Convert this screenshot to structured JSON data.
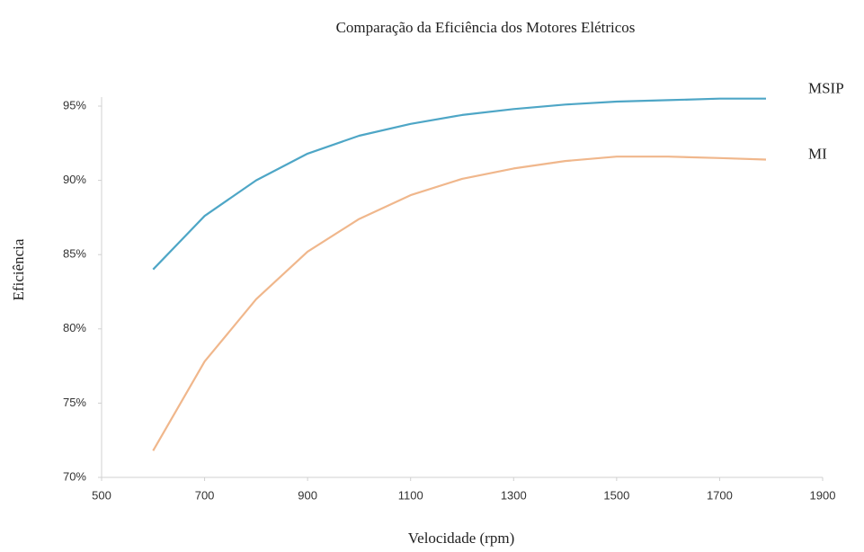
{
  "chart_data": {
    "type": "line",
    "title": "Comparação da Eficiência dos Motores Elétricos",
    "x_label": "Velocidade (rpm)",
    "y_label": "Eficiência",
    "x": [
      600,
      700,
      800,
      900,
      1000,
      1100,
      1200,
      1300,
      1400,
      1500,
      1600,
      1700,
      1790
    ],
    "series": [
      {
        "name": "MSIP",
        "color": "#4ea6c6",
        "values": [
          84.0,
          87.6,
          90.0,
          91.8,
          93.0,
          93.8,
          94.4,
          94.8,
          95.1,
          95.3,
          95.4,
          95.5,
          95.5
        ]
      },
      {
        "name": "MI",
        "color": "#f0b78c",
        "values": [
          71.8,
          77.8,
          82.0,
          85.2,
          87.4,
          89.0,
          90.1,
          90.8,
          91.3,
          91.6,
          91.6,
          91.5,
          91.4
        ]
      }
    ],
    "xlim": [
      500,
      1900
    ],
    "xticks": [
      500,
      700,
      900,
      1100,
      1300,
      1500,
      1700,
      1900
    ],
    "ylim": [
      70,
      95
    ],
    "yticks": [
      {
        "value": 70,
        "label": "70%"
      },
      {
        "value": 75,
        "label": "75%"
      },
      {
        "value": 80,
        "label": "80%"
      },
      {
        "value": 85,
        "label": "85%"
      },
      {
        "value": 90,
        "label": "90%"
      },
      {
        "value": 95,
        "label": "95%"
      }
    ],
    "grid": false,
    "legend": "end-of-line"
  }
}
